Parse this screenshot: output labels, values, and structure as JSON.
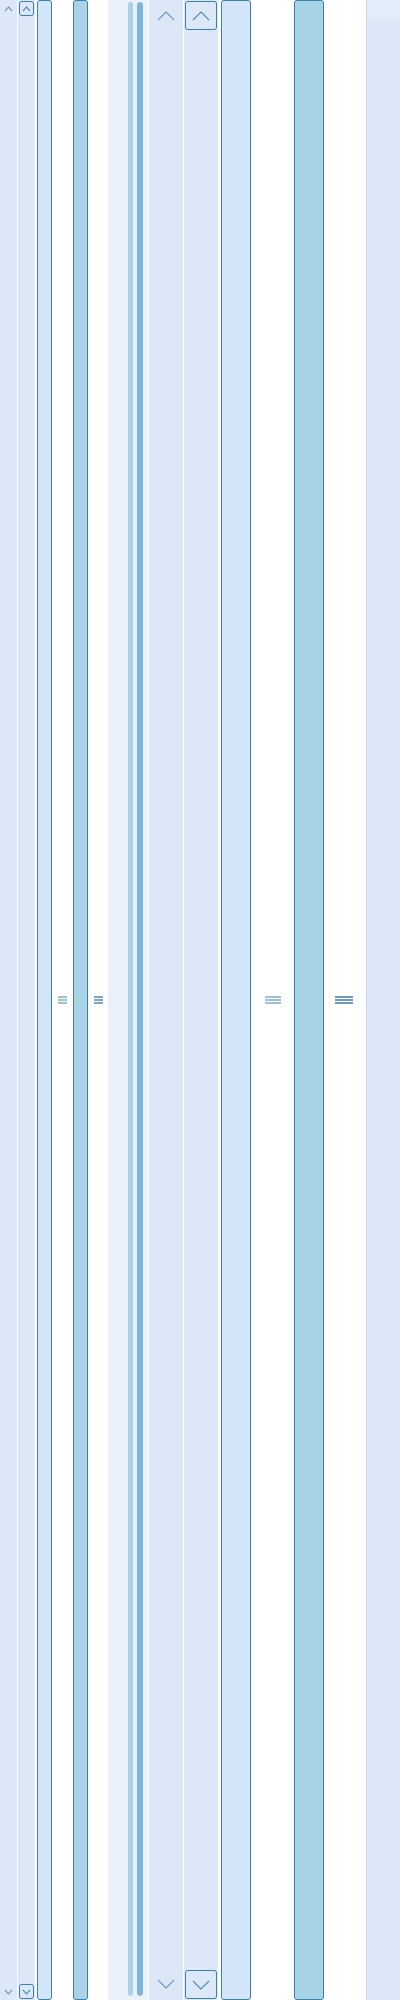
{
  "scrollbars": [
    {
      "id": "sb1",
      "orientation": "vertical",
      "style": "plain-arrows",
      "state": "normal"
    },
    {
      "id": "sb2",
      "orientation": "vertical",
      "style": "boxed-arrows",
      "state": "normal"
    },
    {
      "id": "sb3",
      "orientation": "vertical",
      "style": "thumb-only",
      "state": "normal"
    },
    {
      "id": "sb4",
      "orientation": "vertical",
      "style": "thumb-only",
      "state": "hover"
    },
    {
      "id": "sb5",
      "orientation": "vertical",
      "style": "thin-thumbs",
      "state": "normal"
    },
    {
      "id": "sb6",
      "orientation": "vertical",
      "style": "plain-arrows-large",
      "state": "normal"
    },
    {
      "id": "sb7",
      "orientation": "vertical",
      "style": "boxed-arrows-large",
      "state": "normal"
    },
    {
      "id": "sb8",
      "orientation": "vertical",
      "style": "thumb-only-large",
      "state": "normal"
    },
    {
      "id": "sb9",
      "orientation": "vertical",
      "style": "thumb-only-large",
      "state": "hover"
    },
    {
      "id": "sb10",
      "orientation": "vertical",
      "style": "track-only",
      "state": "disabled"
    }
  ],
  "icons": {
    "up": "chevron-up-icon",
    "down": "chevron-down-icon",
    "grip": "grip-lines-icon"
  },
  "colors": {
    "track": "#dce8f7",
    "track_pale": "#eaf1fb",
    "thumb_outline_fill": "#d3e5f8",
    "thumb_filled": "#a8d2e6",
    "border": "#3c7fb1",
    "arrow": "#5b8fc0"
  }
}
